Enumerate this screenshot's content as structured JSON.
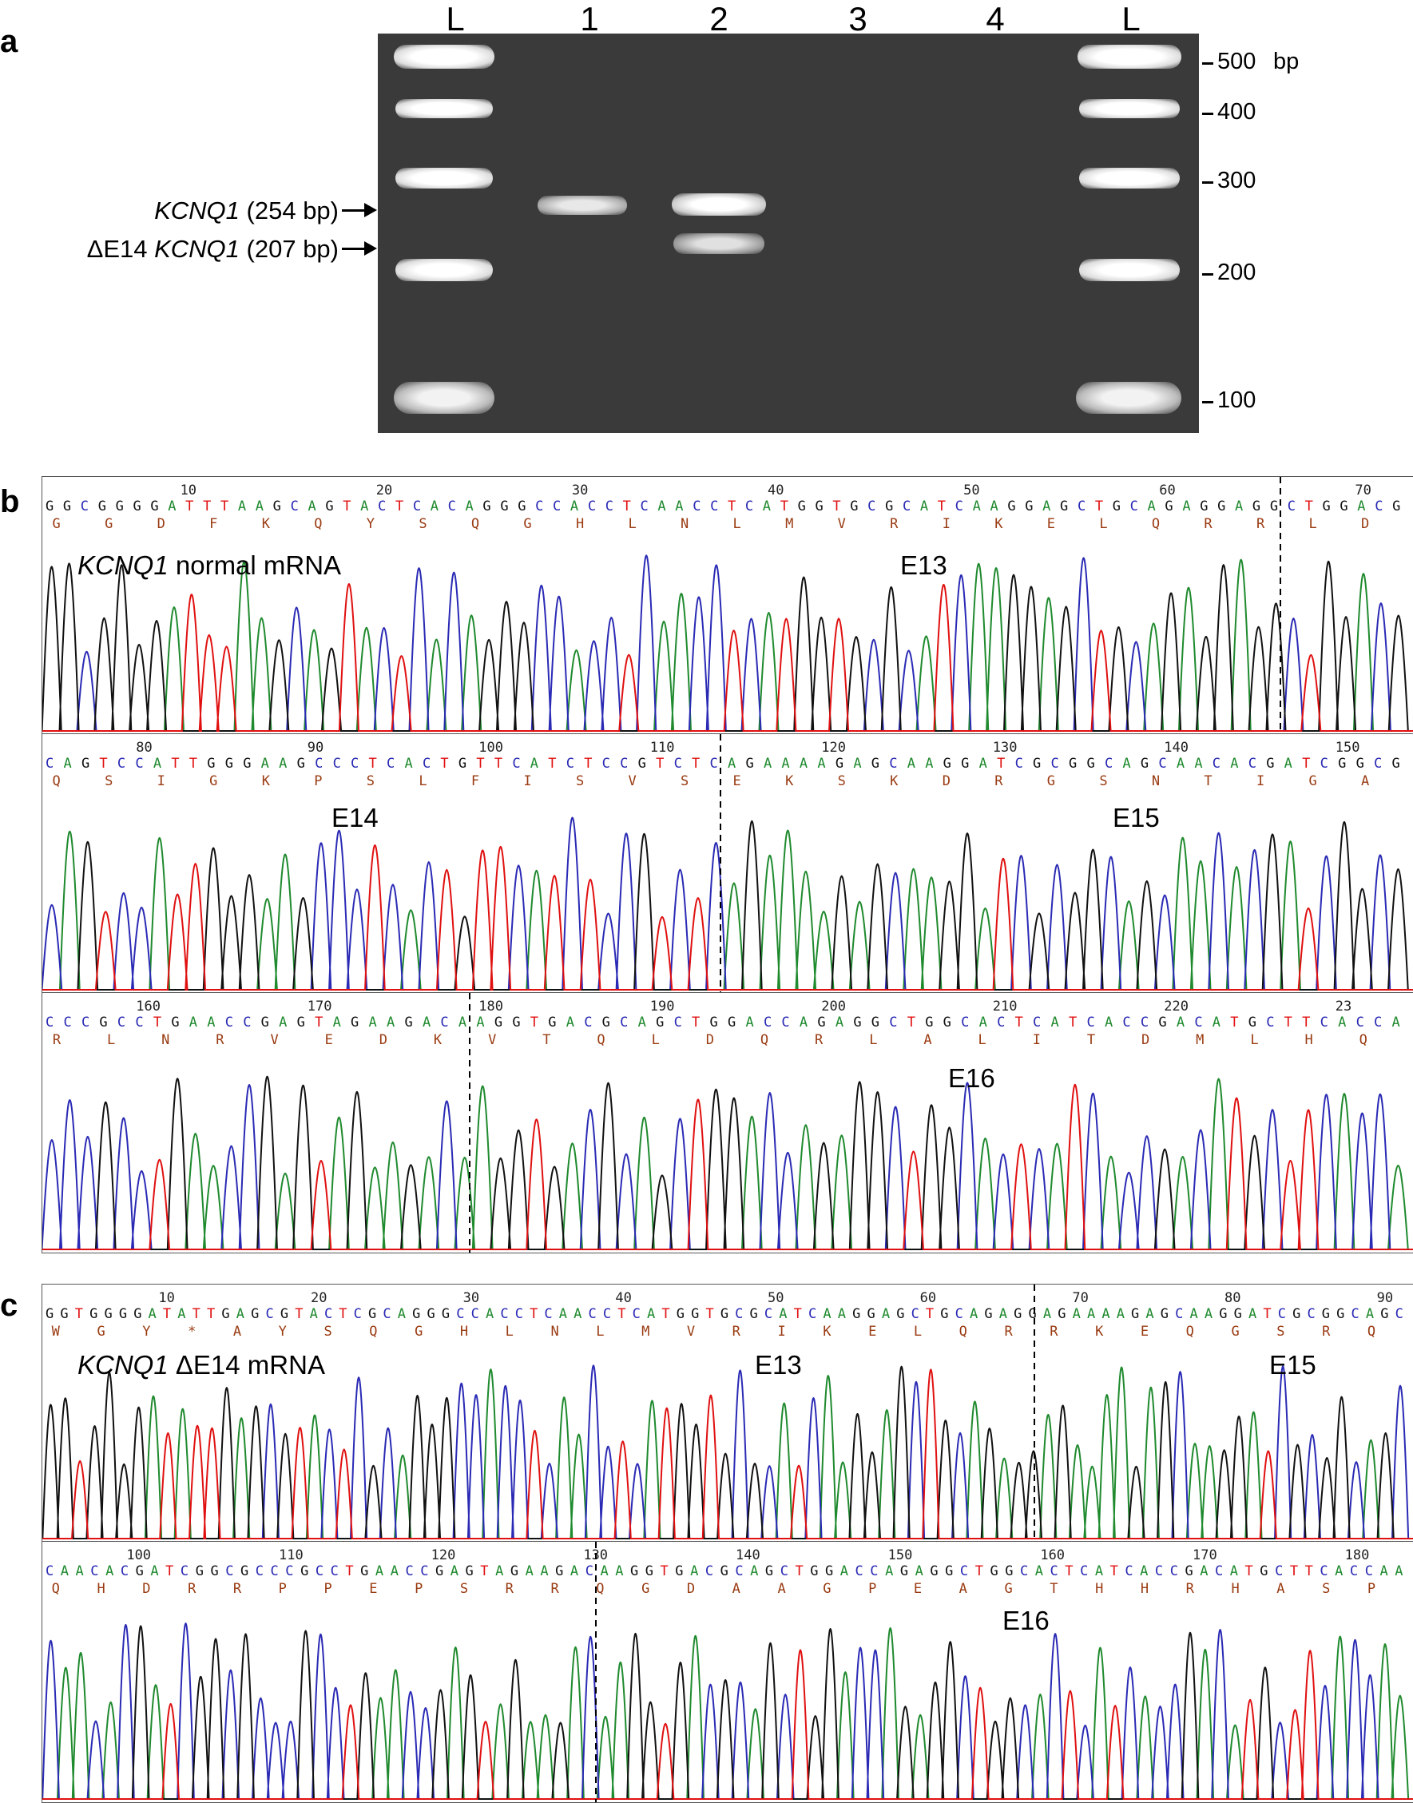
{
  "panels": {
    "a": "a",
    "b": "b",
    "c": "c"
  },
  "gel": {
    "lanes": [
      "L",
      "1",
      "2",
      "3",
      "4",
      "L"
    ],
    "size_markers": [
      "500",
      "400",
      "300",
      "200",
      "100"
    ],
    "size_unit": "bp",
    "band_labels": [
      {
        "prefix": "",
        "gene": "KCNQ1",
        "suffix": " (254 bp)"
      },
      {
        "prefix": "ΔE14 ",
        "gene": "KCNQ1",
        "suffix": " (207 bp)"
      }
    ]
  },
  "panel_b": {
    "title_gene": "KCNQ1",
    "title_rest": " normal mRNA",
    "rows": [
      {
        "ticks": [
          "10",
          "20",
          "30",
          "40",
          "50",
          "60",
          "70"
        ],
        "bases": "GGCGGGGATTTAAGCAGTACTCACAGGGCCACCTCAACCTCATGGTGCGCATCAAGGAGCTGCAGAGGAGGCTGGACG",
        "aa": "G G D F K Q Y S Q G H L N L M V R I K E L Q R R L D",
        "exons": [
          "E13"
        ]
      },
      {
        "ticks": [
          "80",
          "90",
          "100",
          "110",
          "120",
          "130",
          "140",
          "150"
        ],
        "bases": "CAGTCCATTGGGAAGCCCTCACTGTTCATCTCCGTCTCAGAAAAGAGCAAGGATCGCGGCAGCAACACGATCGGCG",
        "aa": "Q S I G K P S L F I S V S E K S K D R G S N T I G A",
        "exons": [
          "E14",
          "E15"
        ]
      },
      {
        "ticks": [
          "160",
          "170",
          "180",
          "190",
          "200",
          "210",
          "220",
          "23"
        ],
        "bases": "CCCGCCTGAACCGAGTAGAAGACAAGGTGACGCAGCTGGACCAGAGGCTGGCACTCATCACCGACATGCTTCACCA",
        "aa": "R L N R V E D K V T Q L D Q R L A L I T D M L H Q",
        "exons": [
          "E16"
        ]
      }
    ]
  },
  "panel_c": {
    "title_gene": "KCNQ1",
    "title_rest": " ΔE14 mRNA",
    "rows": [
      {
        "ticks": [
          "10",
          "20",
          "30",
          "40",
          "50",
          "60",
          "70",
          "80",
          "90"
        ],
        "bases": "GGTGGGGATATTGAGCGTACTCGCAGGGCCACCTCAACCTCATGGTGCGCATCAAGGAGCTGCAGAGGAGAAAAGAGCAAGGATCGCGGCAGC",
        "aa": "W G Y * A Y S Q G H L N L M V R I K E L Q R R K E Q G S R Q",
        "exons": [
          "E13",
          "E15"
        ]
      },
      {
        "ticks": [
          "100",
          "110",
          "120",
          "130",
          "140",
          "150",
          "160",
          "170",
          "180"
        ],
        "bases": "CAACACGATCGGCGCCCGCCTGAACCGAGTAGAAGACAAGGTGACGCAGCTGGACCAGAGGCTGGCACTCATCACCGACATGCTTCACCAA",
        "aa": "Q H D R R P P E P S R R Q G D A A G P E A G T H H R H A S P",
        "exons": [
          "E16"
        ]
      }
    ]
  },
  "colors": {
    "A": "#1f8a2e",
    "C": "#2a2ab5",
    "G": "#111111",
    "T": "#e01010",
    "aa": "#9a3b12",
    "gel_bg": "#3a3a3a"
  }
}
